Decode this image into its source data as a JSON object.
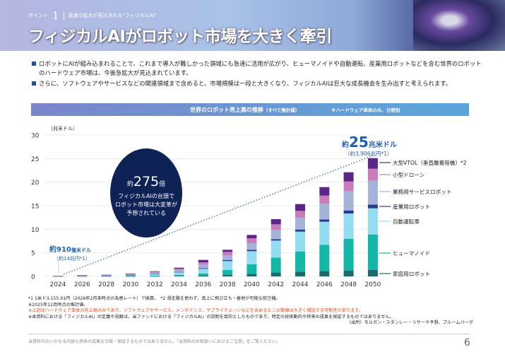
{
  "header": {
    "point_label": "ポイント",
    "point_num": "1",
    "subtitle": "急速な拡大が見込まれる\"フィジカルAI\"",
    "title": "フィジカルAIがロボット市場を大きく牽引"
  },
  "bullets": [
    "ロボットにAIが組み込まれることで、これまで導入が難しかった領域にも急速に活用が広がり、ヒューマノイドや自動運転、産業用ロボットなどを含む世界のロボットのハードウェア市場は、今後急拡大が見込まれています。",
    "さらに、ソフトウェアやサービスなどの関連領域まで含めると、市場規模は一段と大きくなり、フィジカルAIは巨大な成長機会を生み出すと考えられます。"
  ],
  "chart_head": {
    "title": "世界のロボット売上高の推移",
    "title_note": "（すべて推計値）",
    "note": "※ハードウェア単体のみ、分野別"
  },
  "chart_data": {
    "type": "bar",
    "stacked": true,
    "title": "世界のロボット売上高の推移（すべて推計値）",
    "ylabel": "（兆米ドル）",
    "ylim": [
      0,
      30
    ],
    "yticks": [
      0,
      5,
      10,
      15,
      20,
      25,
      30
    ],
    "categories": [
      "2024",
      "2026",
      "2028",
      "2030",
      "2032",
      "2034",
      "2036",
      "2038",
      "2040",
      "2042",
      "2044",
      "2046",
      "2048",
      "2050"
    ],
    "series": [
      {
        "name": "家庭用ロボット",
        "color": "#1b6a6c",
        "values": [
          0,
          0,
          0,
          0.02,
          0.05,
          0.1,
          0.2,
          0.35,
          0.55,
          0.85,
          1.0,
          1.15,
          1.25,
          1.35
        ]
      },
      {
        "name": "ヒューマノイド",
        "color": "#12b7a6",
        "values": [
          0,
          0.01,
          0.02,
          0.05,
          0.1,
          0.2,
          0.4,
          1.0,
          2.0,
          3.15,
          4.3,
          5.55,
          6.75,
          7.55
        ]
      },
      {
        "name": "自動運転車",
        "color": "#93dcf2",
        "values": [
          0.02,
          0.05,
          0.1,
          0.2,
          0.35,
          0.55,
          1.0,
          1.9,
          2.8,
          3.6,
          4.2,
          4.9,
          5.35,
          5.55
        ]
      },
      {
        "name": "産業用ロボット",
        "color": "#2b3b8f",
        "values": [
          0.005,
          0.01,
          0.02,
          0.03,
          0.05,
          0.1,
          0.15,
          0.2,
          0.3,
          0.3,
          0.45,
          0.5,
          0.65,
          0.8
        ]
      },
      {
        "name": "業務用サービスロボット",
        "color": "#a4b3d7",
        "values": [
          0.02,
          0.04,
          0.06,
          0.1,
          0.25,
          0.4,
          0.75,
          1.0,
          1.4,
          1.95,
          2.55,
          3.3,
          4.1,
          5.15
        ]
      },
      {
        "name": "小型ドローン",
        "color": "#c97cb9",
        "values": [
          0.04,
          0.12,
          0.12,
          0.15,
          0.2,
          0.3,
          0.5,
          0.75,
          1.05,
          1.2,
          1.4,
          1.75,
          2.05,
          2.45
        ]
      },
      {
        "name": "大型VTOL（垂直離着陸機）*2",
        "color": "#5a2787",
        "values": [
          0.005,
          0.02,
          0.03,
          0.05,
          0.1,
          0.2,
          0.5,
          0.45,
          0.7,
          1.1,
          1.45,
          1.8,
          1.95,
          2.25
        ]
      }
    ],
    "annotations": {
      "start_main": "約910",
      "start_unit": "億米ドル",
      "start_sub": "（約14兆円*1）",
      "end_pre": "約",
      "end_num": "25",
      "end_unit": "兆米ドル",
      "end_sub": "（約3,906兆円*1）",
      "bubble_pre": "約",
      "bubble_num": "275",
      "bubble_unit": "倍",
      "bubble_text": [
        "フィジカルAIの台頭で",
        "ロボット市場は大変革が",
        "予想されている"
      ]
    },
    "grid": true,
    "legend": "right"
  },
  "notes": [
    "*1 1米ドル155.91円（2026年2月末時点の為替レート）で換算。　*2 滑走路を使わず、真上に飛び立ち・着地が可能な航空機。",
    "※2025年12月時点の推計値。",
    "※上記はハードウェア単体の売上高のみであり、ソフトウェアやサービス、メンテナンス、サプライチェーンなどを含めるとこの数値は大きく増加する可能性があります。",
    "※本資料における「フィジカルAI」の定義や見解は、当ファンドにおける「フィジカルAI」の説明を目的としたものであり、特定の技術動向や将来の成果を保証するものではありません。",
    "（出所）モルガン・スタンレー・リサーチ予想、ブルームバーグ"
  ],
  "footer": {
    "disclaimer": "当資料中のいかなる内容も将来の成果を示唆・保証するものではありません。「当資料のお取扱いにおけるご注意」をご覧ください。",
    "page": "6"
  }
}
